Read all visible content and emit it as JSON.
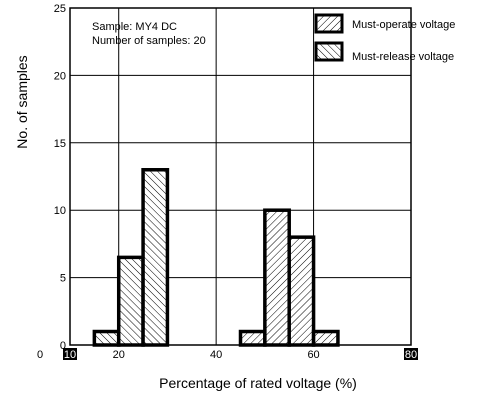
{
  "chart_data": {
    "type": "bar",
    "xlabel": "Percentage of rated voltage (%)",
    "ylabel": "No. of samples",
    "xlim": [
      10,
      80
    ],
    "ylim": [
      0,
      25
    ],
    "x_ticks": [
      {
        "value": 10,
        "label": "10",
        "boxed": true
      },
      {
        "value": 20,
        "label": "20",
        "boxed": false
      },
      {
        "value": 40,
        "label": "40",
        "boxed": false
      },
      {
        "value": 60,
        "label": "60",
        "boxed": false
      },
      {
        "value": 80,
        "label": "80",
        "boxed": true
      }
    ],
    "y_ticks": [
      0,
      5,
      10,
      15,
      20,
      25
    ],
    "grid": true,
    "annotation_lines": [
      "Sample: MY4 DC",
      "Number of samples: 20"
    ],
    "legend_position": "top-right",
    "series": [
      {
        "name": "Must-operate voltage",
        "hatch": "forward-diagonal",
        "bars": [
          {
            "x0": 45,
            "x1": 50,
            "value": 1
          },
          {
            "x0": 50,
            "x1": 55,
            "value": 10
          },
          {
            "x0": 55,
            "x1": 60,
            "value": 8
          },
          {
            "x0": 60,
            "x1": 65,
            "value": 1
          }
        ]
      },
      {
        "name": "Must-release voltage",
        "hatch": "backward-diagonal",
        "bars": [
          {
            "x0": 15,
            "x1": 20,
            "value": 1
          },
          {
            "x0": 20,
            "x1": 25,
            "value": 6.5
          },
          {
            "x0": 25,
            "x1": 30,
            "value": 13
          }
        ]
      }
    ]
  }
}
